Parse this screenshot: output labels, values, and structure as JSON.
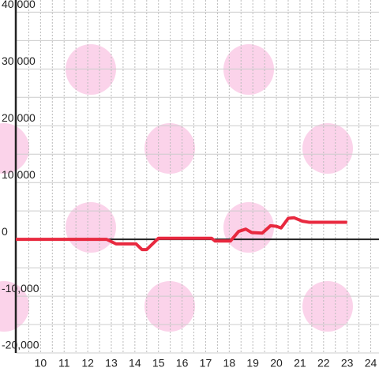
{
  "chart_data": {
    "type": "line",
    "x": [
      8.95,
      12.8,
      13.2,
      14.05,
      14.3,
      14.5,
      15.0,
      17.25,
      17.4,
      18.05,
      18.4,
      18.7,
      18.95,
      19.4,
      19.75,
      20.0,
      20.2,
      20.5,
      20.75,
      21.1,
      21.4,
      23.0
    ],
    "series": [
      {
        "color": "#e8293f",
        "values": [
          0,
          0,
          -800,
          -800,
          -1800,
          -1800,
          200,
          200,
          -300,
          -300,
          1400,
          1800,
          1200,
          1100,
          2400,
          2300,
          2000,
          3700,
          3800,
          3200,
          3000,
          3000
        ]
      }
    ],
    "xlim": [
      8.95,
      24.35
    ],
    "xticks": [
      10,
      11,
      12,
      13,
      14,
      15,
      16,
      17,
      18,
      19,
      20,
      21,
      22,
      23,
      24
    ],
    "minor_xticks": [
      9.5,
      10.5,
      11.5,
      12.5,
      13.5,
      14.5,
      15.5,
      16.5,
      17.5,
      18.5,
      19.5,
      20.5,
      21.5,
      22.5,
      23.5
    ],
    "ylim": [
      -20000,
      42000
    ],
    "yticks": [
      {
        "value": -20000,
        "label": "-20,000"
      },
      {
        "value": -10000,
        "label": "-10,000"
      },
      0,
      {
        "value": 10000,
        "label": "10,000"
      },
      {
        "value": 20000,
        "label": "20,000"
      },
      {
        "value": 30000,
        "label": "30,000"
      },
      {
        "value": 40000,
        "label": "40,000"
      }
    ],
    "minor_yticks": [
      -15000,
      -5000,
      5000,
      15000,
      25000,
      35000
    ],
    "grid": true
  }
}
